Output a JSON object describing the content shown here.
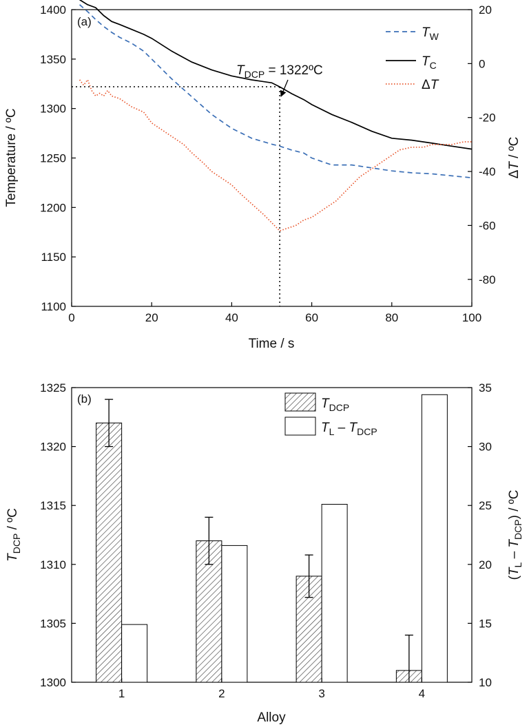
{
  "chart_data": [
    {
      "panel_label": "(a)",
      "type": "line",
      "xlabel": "Time / s",
      "ylabel_left": "Temperature / ºC",
      "ylabel_right": "ΔT / ºC",
      "xlim": [
        0,
        100
      ],
      "ylim_left": [
        1100,
        1400
      ],
      "ylim_right": [
        -90,
        20
      ],
      "x_ticks": [
        0,
        20,
        40,
        60,
        80,
        100
      ],
      "y_ticks_left": [
        1100,
        1150,
        1200,
        1250,
        1300,
        1350,
        1400
      ],
      "y_ticks_right": [
        -80,
        -60,
        -40,
        -20,
        0,
        20
      ],
      "legend_position": "top-right",
      "series": [
        {
          "name": "TW",
          "axis": "left",
          "color": "#3b6fb6",
          "style": "dashed",
          "x": [
            2,
            4,
            6,
            8,
            10,
            12,
            15,
            18,
            20,
            25,
            30,
            35,
            40,
            45,
            50,
            52,
            55,
            58,
            60,
            65,
            70,
            75,
            80,
            85,
            90,
            95,
            100
          ],
          "y": [
            1405,
            1398,
            1390,
            1383,
            1377,
            1372,
            1366,
            1358,
            1350,
            1330,
            1312,
            1294,
            1280,
            1270,
            1264,
            1262,
            1258,
            1255,
            1250,
            1243,
            1243,
            1240,
            1237,
            1235,
            1234,
            1232,
            1230
          ]
        },
        {
          "name": "TC",
          "axis": "left",
          "color": "#000000",
          "style": "solid",
          "x": [
            2,
            4,
            6,
            8,
            10,
            12,
            15,
            18,
            20,
            25,
            30,
            35,
            40,
            45,
            50,
            52,
            55,
            58,
            60,
            65,
            70,
            75,
            80,
            85,
            90,
            95,
            100
          ],
          "y": [
            1410,
            1405,
            1402,
            1394,
            1388,
            1385,
            1380,
            1375,
            1371,
            1358,
            1347,
            1339,
            1333,
            1329,
            1326,
            1322,
            1315,
            1309,
            1304,
            1294,
            1286,
            1277,
            1270,
            1268,
            1265,
            1262,
            1259
          ]
        },
        {
          "name": "ΔT",
          "axis": "right",
          "color": "#e8542a",
          "style": "dotted",
          "x": [
            2,
            3,
            4,
            5,
            6,
            7,
            8,
            9,
            10,
            12,
            15,
            18,
            20,
            22,
            25,
            28,
            30,
            33,
            35,
            38,
            40,
            42,
            45,
            48,
            50,
            52,
            54,
            56,
            58,
            60,
            62,
            64,
            66,
            68,
            70,
            72,
            74,
            76,
            78,
            80,
            82,
            85,
            88,
            90,
            92,
            95,
            98,
            100
          ],
          "y": [
            -6,
            -8,
            -6,
            -10,
            -12,
            -11,
            -12,
            -10,
            -12,
            -13,
            -16,
            -18,
            -22,
            -24,
            -27,
            -30,
            -33,
            -37,
            -40,
            -43,
            -45,
            -48,
            -52,
            -56,
            -59,
            -62,
            -61,
            -60,
            -58,
            -57,
            -55,
            -53,
            -51,
            -48,
            -45,
            -42,
            -40,
            -38,
            -36,
            -34,
            -32,
            -31,
            -31,
            -30,
            -30,
            -30,
            -29,
            -29
          ]
        }
      ],
      "annotation": {
        "label_main": "T",
        "label_sub": "DCP",
        "label_value": " = 1322ºC",
        "x": 52,
        "y": 1322
      }
    },
    {
      "panel_label": "(b)",
      "type": "bar",
      "xlabel": "Alloy",
      "categories": [
        "1",
        "2",
        "3",
        "4"
      ],
      "ylim_left": [
        1300,
        1325
      ],
      "ylim_right": [
        10,
        35
      ],
      "y_ticks_left": [
        1300,
        1305,
        1310,
        1315,
        1320,
        1325
      ],
      "y_ticks_right": [
        10,
        15,
        20,
        25,
        30,
        35
      ],
      "legend_position": "top-right",
      "series": [
        {
          "name": "TDCP",
          "axis": "left",
          "fill": "hatched",
          "values": [
            1322,
            1312,
            1309,
            1301
          ],
          "errors": [
            2.0,
            2.0,
            1.8,
            3.0
          ]
        },
        {
          "name": "TL − TDCP",
          "axis": "right",
          "fill": "white",
          "values": [
            14.9,
            21.6,
            25.1,
            34.4
          ]
        }
      ]
    }
  ]
}
